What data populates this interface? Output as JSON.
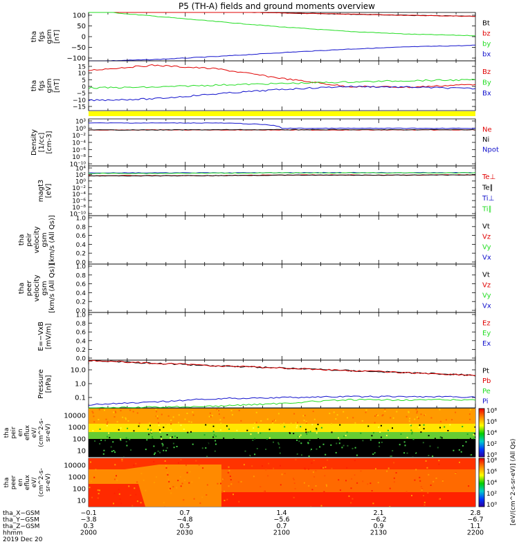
{
  "title": "P5 (TH-A) fields and ground moments overview",
  "colors": {
    "black": "#000000",
    "red": "#e00000",
    "green": "#22dd22",
    "blue": "#1010cc",
    "yellow": "#ffff00"
  },
  "chart_data": [
    {
      "type": "line",
      "panel": "fgs_gsm_large",
      "ylabel": [
        "tha",
        "fgs",
        "gsm",
        "[nT]"
      ],
      "ylim": [
        -100,
        100
      ],
      "yticks": [
        "100",
        "50",
        "0",
        "−50",
        "−100"
      ],
      "series": [
        {
          "name": "Bt",
          "color": "black",
          "values": [
            120,
            112,
            104,
            98,
            93,
            88,
            84
          ]
        },
        {
          "name": "bz",
          "color": "red",
          "values": [
            120,
            112,
            104,
            98,
            93,
            88,
            84
          ]
        },
        {
          "name": "by",
          "color": "green",
          "values": [
            108,
            85,
            62,
            40,
            22,
            10,
            4
          ]
        },
        {
          "name": "bx",
          "color": "blue",
          "values": [
            -102,
            -95,
            -82,
            -66,
            -52,
            -42,
            -36
          ]
        }
      ]
    },
    {
      "type": "line",
      "panel": "fgs_gsm_small",
      "ylabel": [
        "tha",
        "fgs",
        "gsm",
        "[nT]"
      ],
      "ylim": [
        -17,
        17
      ],
      "yticks": [
        "15",
        "10",
        "5",
        "0",
        "−5",
        "−10",
        "−15"
      ],
      "series": [
        {
          "name": "Bz",
          "color": "red",
          "values": [
            10.5,
            14,
            11.5,
            5,
            -0.5,
            -1,
            1
          ]
        },
        {
          "name": "By",
          "color": "green",
          "values": [
            -1.5,
            -1,
            0.5,
            1.5,
            2.5,
            3.5,
            4
          ]
        },
        {
          "name": "Bx",
          "color": "blue",
          "values": [
            -10,
            -9,
            -5.5,
            -2.5,
            -0.5,
            -1,
            -2
          ]
        }
      ]
    },
    {
      "type": "line",
      "panel": "density",
      "ylabel": [
        "Density",
        "[1/cc]",
        "[cm-3]"
      ],
      "log_range": [
        -12,
        3
      ],
      "yticks": [
        "10³",
        "10⁰",
        "10⁻²",
        "10⁻⁴",
        "10⁻⁶",
        "10⁻⁸",
        "10⁻¹⁰"
      ],
      "series": [
        {
          "name": "Ne",
          "color": "red",
          "values": [
            0.3,
            0.3,
            0.3,
            0.3,
            0.3,
            0.3,
            0.3
          ]
        },
        {
          "name": "Ni",
          "color": "black",
          "values": [
            0.3,
            0.3,
            0.35,
            0.35,
            0.35,
            0.35,
            0.35
          ]
        },
        {
          "name": "Npot",
          "color": "blue",
          "values": [
            50,
            50,
            50,
            1,
            1,
            1,
            1
          ]
        }
      ]
    },
    {
      "type": "line",
      "panel": "temperature",
      "ylabel": [
        "magt3",
        "[eV]"
      ],
      "log_range": [
        -12,
        6
      ],
      "yticks": [
        "10⁴",
        "10²",
        "10⁰",
        "10⁻²",
        "10⁻⁴",
        "10⁻⁶",
        "10⁻⁸",
        "10⁻¹⁰"
      ],
      "series": [
        {
          "name": "Te⊥",
          "color": "red",
          "values": [
            300,
            300,
            300,
            500,
            500,
            500,
            600
          ]
        },
        {
          "name": "Te∥",
          "color": "black",
          "values": [
            250,
            250,
            300,
            450,
            450,
            450,
            550
          ]
        },
        {
          "name": "Ti⊥",
          "color": "blue",
          "values": [
            3000,
            3000,
            3000,
            3500,
            3500,
            3500,
            3500
          ]
        },
        {
          "name": "Ti∥",
          "color": "green",
          "values": [
            2000,
            2000,
            2500,
            3000,
            3000,
            3000,
            3000
          ]
        }
      ]
    },
    {
      "type": "line",
      "panel": "peir_velocity",
      "ylabel": [
        "tha",
        "peir",
        "velocity",
        "gsm",
        "[km/s (All Qs)]"
      ],
      "ylim": [
        0,
        1
      ],
      "yticks": [
        "1.0",
        "0.8",
        "0.6",
        "0.4",
        "0.2",
        "0.0"
      ],
      "series": [
        {
          "name": "Vt",
          "color": "black"
        },
        {
          "name": "Vz",
          "color": "red"
        },
        {
          "name": "Vy",
          "color": "green"
        },
        {
          "name": "Vx",
          "color": "blue"
        }
      ]
    },
    {
      "type": "line",
      "panel": "peer_velocity",
      "ylabel": [
        "tha",
        "peer",
        "velocity",
        "gsm",
        "[km/s (All Qs)]"
      ],
      "ylim": [
        0,
        1
      ],
      "yticks": [
        "1.0",
        "0.8",
        "0.6",
        "0.4",
        "0.2",
        "0.0"
      ],
      "series": [
        {
          "name": "Vt",
          "color": "black"
        },
        {
          "name": "Vz",
          "color": "red"
        },
        {
          "name": "Vy",
          "color": "green"
        },
        {
          "name": "Vx",
          "color": "blue"
        }
      ]
    },
    {
      "type": "line",
      "panel": "efield",
      "ylabel": [
        "E=−VxB",
        "[mV/m]"
      ],
      "ylim": [
        0,
        1
      ],
      "yticks": [
        "1.0",
        "0.8",
        "0.6",
        "0.4",
        "0.2",
        "0.0"
      ],
      "series": [
        {
          "name": "Ez",
          "color": "red"
        },
        {
          "name": "Ey",
          "color": "green"
        },
        {
          "name": "Ex",
          "color": "blue"
        }
      ]
    },
    {
      "type": "line",
      "panel": "pressure",
      "ylabel": [
        "Pressure",
        "[nPa]"
      ],
      "log_range": [
        -1.5,
        1.5
      ],
      "yticks": [
        "10.0",
        "1.0",
        "0.1"
      ],
      "series": [
        {
          "name": "Pt",
          "color": "black",
          "values": [
            30,
            20,
            14,
            10,
            7,
            5,
            3.5
          ]
        },
        {
          "name": "Pb",
          "color": "red",
          "values": [
            30,
            20,
            14,
            10,
            7,
            5,
            3.5
          ]
        },
        {
          "name": "Pe",
          "color": "green",
          "values": [
            0.03,
            0.035,
            0.04,
            0.06,
            0.1,
            0.1,
            0.1
          ]
        },
        {
          "name": "Pi",
          "color": "blue",
          "values": [
            0.05,
            0.07,
            0.12,
            0.14,
            0.16,
            0.16,
            0.15
          ]
        }
      ]
    },
    {
      "type": "heatmap",
      "panel": "peir_spectrogram",
      "ylabel": [
        "tha",
        "peir",
        "en",
        "eflux",
        "eV/",
        "(cm^2-s-",
        "sr-eV)"
      ],
      "yticks": [
        "10000",
        "1000",
        "100",
        "10"
      ],
      "colorbar": {
        "label": "[eV/(cm^2-s-sr-eV)] (All Qs)",
        "ticks": [
          "10⁸",
          "10⁶",
          "10⁴",
          "10²",
          "10⁰"
        ]
      }
    },
    {
      "type": "heatmap",
      "panel": "peer_spectrogram",
      "ylabel": [
        "tha",
        "peer",
        "en",
        "eflux",
        "eV/",
        "(cm^2-s-",
        "sr-eV)"
      ],
      "yticks": [
        "10000",
        "1000",
        "100",
        "10"
      ],
      "colorbar": {
        "label": "[eV/(cm^2-s-sr-eV)] (All Qs)",
        "ticks": [
          "10⁸",
          "10⁶",
          "10⁴",
          "10²",
          "10⁰"
        ]
      }
    }
  ],
  "xaxis": {
    "rows": [
      {
        "label": "tha_X−GSM",
        "values": [
          "−0.1",
          "0.7",
          "1.4",
          "2.1",
          "2.8"
        ]
      },
      {
        "label": "tha_Y−GSM",
        "values": [
          "−3.8",
          "−4.8",
          "−5.6",
          "−6.2",
          "−6.7"
        ]
      },
      {
        "label": "tha_Z−GSM",
        "values": [
          "0.3",
          "0.5",
          "0.7",
          "0.9",
          "1.1"
        ]
      },
      {
        "label": "hhmm",
        "values": [
          "2000",
          "2030",
          "2100",
          "2130",
          "2200"
        ]
      }
    ],
    "date": "2019 Dec 20"
  }
}
